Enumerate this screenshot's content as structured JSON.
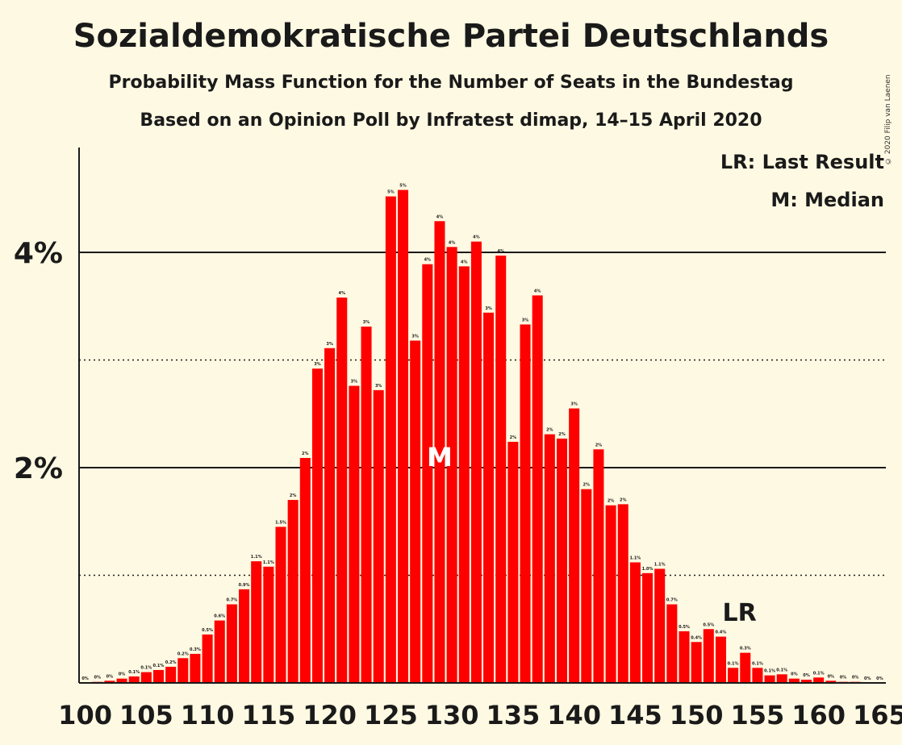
{
  "chart_data": {
    "type": "bar",
    "title": "Sozialdemokratische Partei Deutschlands",
    "subtitle": "Probability Mass Function for the Number of Seats in the Bundestag",
    "subtitle2": "Based on an Opinion Poll by Infratest dimap, 14–15 April 2020",
    "copyright": "© 2020 Filip van Laenen",
    "legend": [
      "LR: Last Result",
      "M: Median"
    ],
    "legend_position": "top-right",
    "x": [
      100,
      101,
      102,
      103,
      104,
      105,
      106,
      107,
      108,
      109,
      110,
      111,
      112,
      113,
      114,
      115,
      116,
      117,
      118,
      119,
      120,
      121,
      122,
      123,
      124,
      125,
      126,
      127,
      128,
      129,
      130,
      131,
      132,
      133,
      134,
      135,
      136,
      137,
      138,
      139,
      140,
      141,
      142,
      143,
      144,
      145,
      146,
      147,
      148,
      149,
      150,
      151,
      152,
      153,
      154,
      155,
      156,
      157,
      158,
      159,
      160,
      161,
      162,
      163,
      164,
      165
    ],
    "values": [
      0.0,
      0.01,
      0.02,
      0.04,
      0.06,
      0.1,
      0.12,
      0.15,
      0.23,
      0.27,
      0.45,
      0.58,
      0.73,
      0.87,
      1.13,
      1.08,
      1.45,
      1.7,
      2.09,
      2.92,
      3.11,
      3.58,
      2.76,
      3.31,
      2.72,
      4.52,
      4.58,
      3.18,
      3.89,
      4.29,
      4.05,
      3.87,
      4.1,
      3.44,
      3.97,
      2.24,
      3.33,
      3.6,
      2.31,
      2.27,
      2.55,
      1.8,
      2.17,
      1.65,
      1.66,
      1.12,
      1.02,
      1.06,
      0.73,
      0.48,
      0.38,
      0.5,
      0.43,
      0.14,
      0.28,
      0.14,
      0.07,
      0.08,
      0.04,
      0.03,
      0.05,
      0.02,
      0.01,
      0.01,
      0.0,
      0.0
    ],
    "labels": [
      "0%",
      "0%",
      "0%",
      "0%",
      "0.1%",
      "0.1%",
      "0.1%",
      "0.2%",
      "0.2%",
      "0.3%",
      "0.5%",
      "0.6%",
      "0.7%",
      "0.9%",
      "1.1%",
      "1.1%",
      "1.5%",
      "2%",
      "2%",
      "3%",
      "3%",
      "4%",
      "3%",
      "3%",
      "3%",
      "5%",
      "5%",
      "3%",
      "4%",
      "4%",
      "4%",
      "4%",
      "4%",
      "3%",
      "4%",
      "2%",
      "3%",
      "4%",
      "2%",
      "2%",
      "3%",
      "2%",
      "2%",
      "2%",
      "2%",
      "1.1%",
      "1.0%",
      "1.1%",
      "0.7%",
      "0.5%",
      "0.4%",
      "0.5%",
      "0.4%",
      "0.1%",
      "0.3%",
      "0.1%",
      "0.1%",
      "0.1%",
      "0%",
      "0%",
      "0.1%",
      "0%",
      "0%",
      "0%",
      "0%",
      "0%"
    ],
    "ylim": [
      0,
      5
    ],
    "y_ticks": [
      {
        "value": 2,
        "label": "2%"
      },
      {
        "value": 4,
        "label": "4%"
      }
    ],
    "y_minor_gridlines": [
      1,
      3
    ],
    "x_ticks": [
      100,
      105,
      110,
      115,
      120,
      125,
      130,
      135,
      140,
      145,
      150,
      155,
      160,
      165
    ],
    "median": {
      "x": 129,
      "label": "M"
    },
    "last_result": {
      "x": 153,
      "label": "LR"
    },
    "colors": {
      "bar": "#ff0000",
      "background": "#fef9e2",
      "text": "#1a1a1a"
    }
  }
}
